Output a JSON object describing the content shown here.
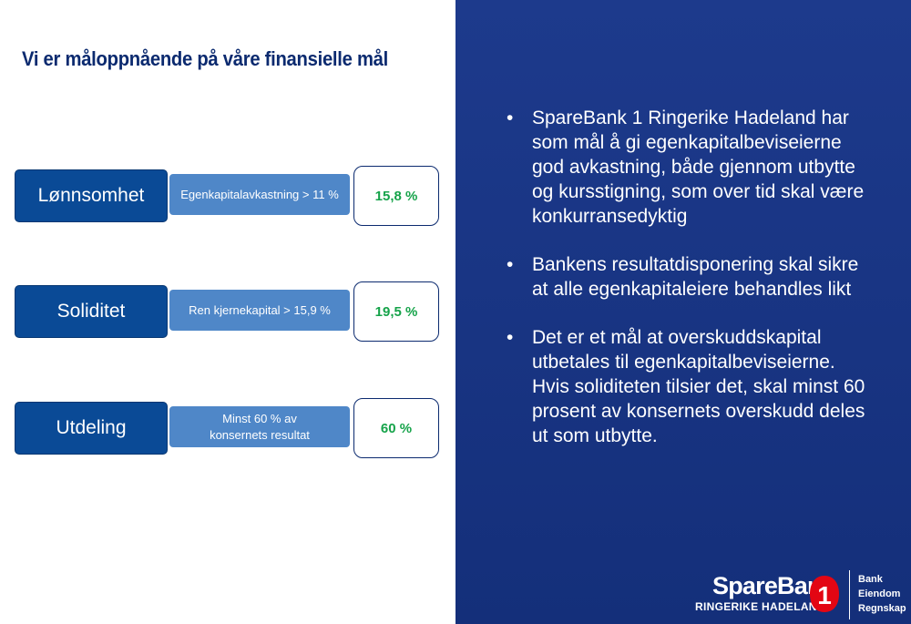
{
  "title": "Vi er måloppnående på våre finansielle mål",
  "goals": [
    {
      "category": "Lønnsomhet",
      "criterion": "Egenkapitalavkastning > 11 %",
      "result": "15,8 %"
    },
    {
      "category": "Soliditet",
      "criterion": "Ren kjernekapital > 15,9 %",
      "result": "19,5 %"
    },
    {
      "category": "Utdeling",
      "criterion": "Minst 60 % av konsernets resultat",
      "result": "60 %"
    }
  ],
  "bullets": [
    "SpareBank 1 Ringerike Hadeland har som mål å gi egenkapitalbeviseierne god avkastning, både gjennom utbytte og kursstigning, som over tid skal være konkurransedyktig",
    "Bankens resultatdisponering skal sikre at alle egenkapitaleiere behandles likt",
    "Det er et mål at overskuddskapital utbetales til egenkapitalbeviseierne. Hvis soliditeten tilsier det, skal minst 60 prosent av konsernets overskudd deles ut som utbytte."
  ],
  "logo": {
    "name": "SpareBank",
    "subtitle": "RINGERIKE HADELAND",
    "mark": "1",
    "units": [
      "Bank",
      "Eiendom",
      "Regnskap"
    ]
  },
  "colors": {
    "title": "#0b2a6f",
    "category_bg": "#0a4a96",
    "criterion_bg": "#4f87c8",
    "result_text": "#16a34a",
    "panel_bg": "#1d3a8c",
    "logo_mark": "#e30613"
  }
}
